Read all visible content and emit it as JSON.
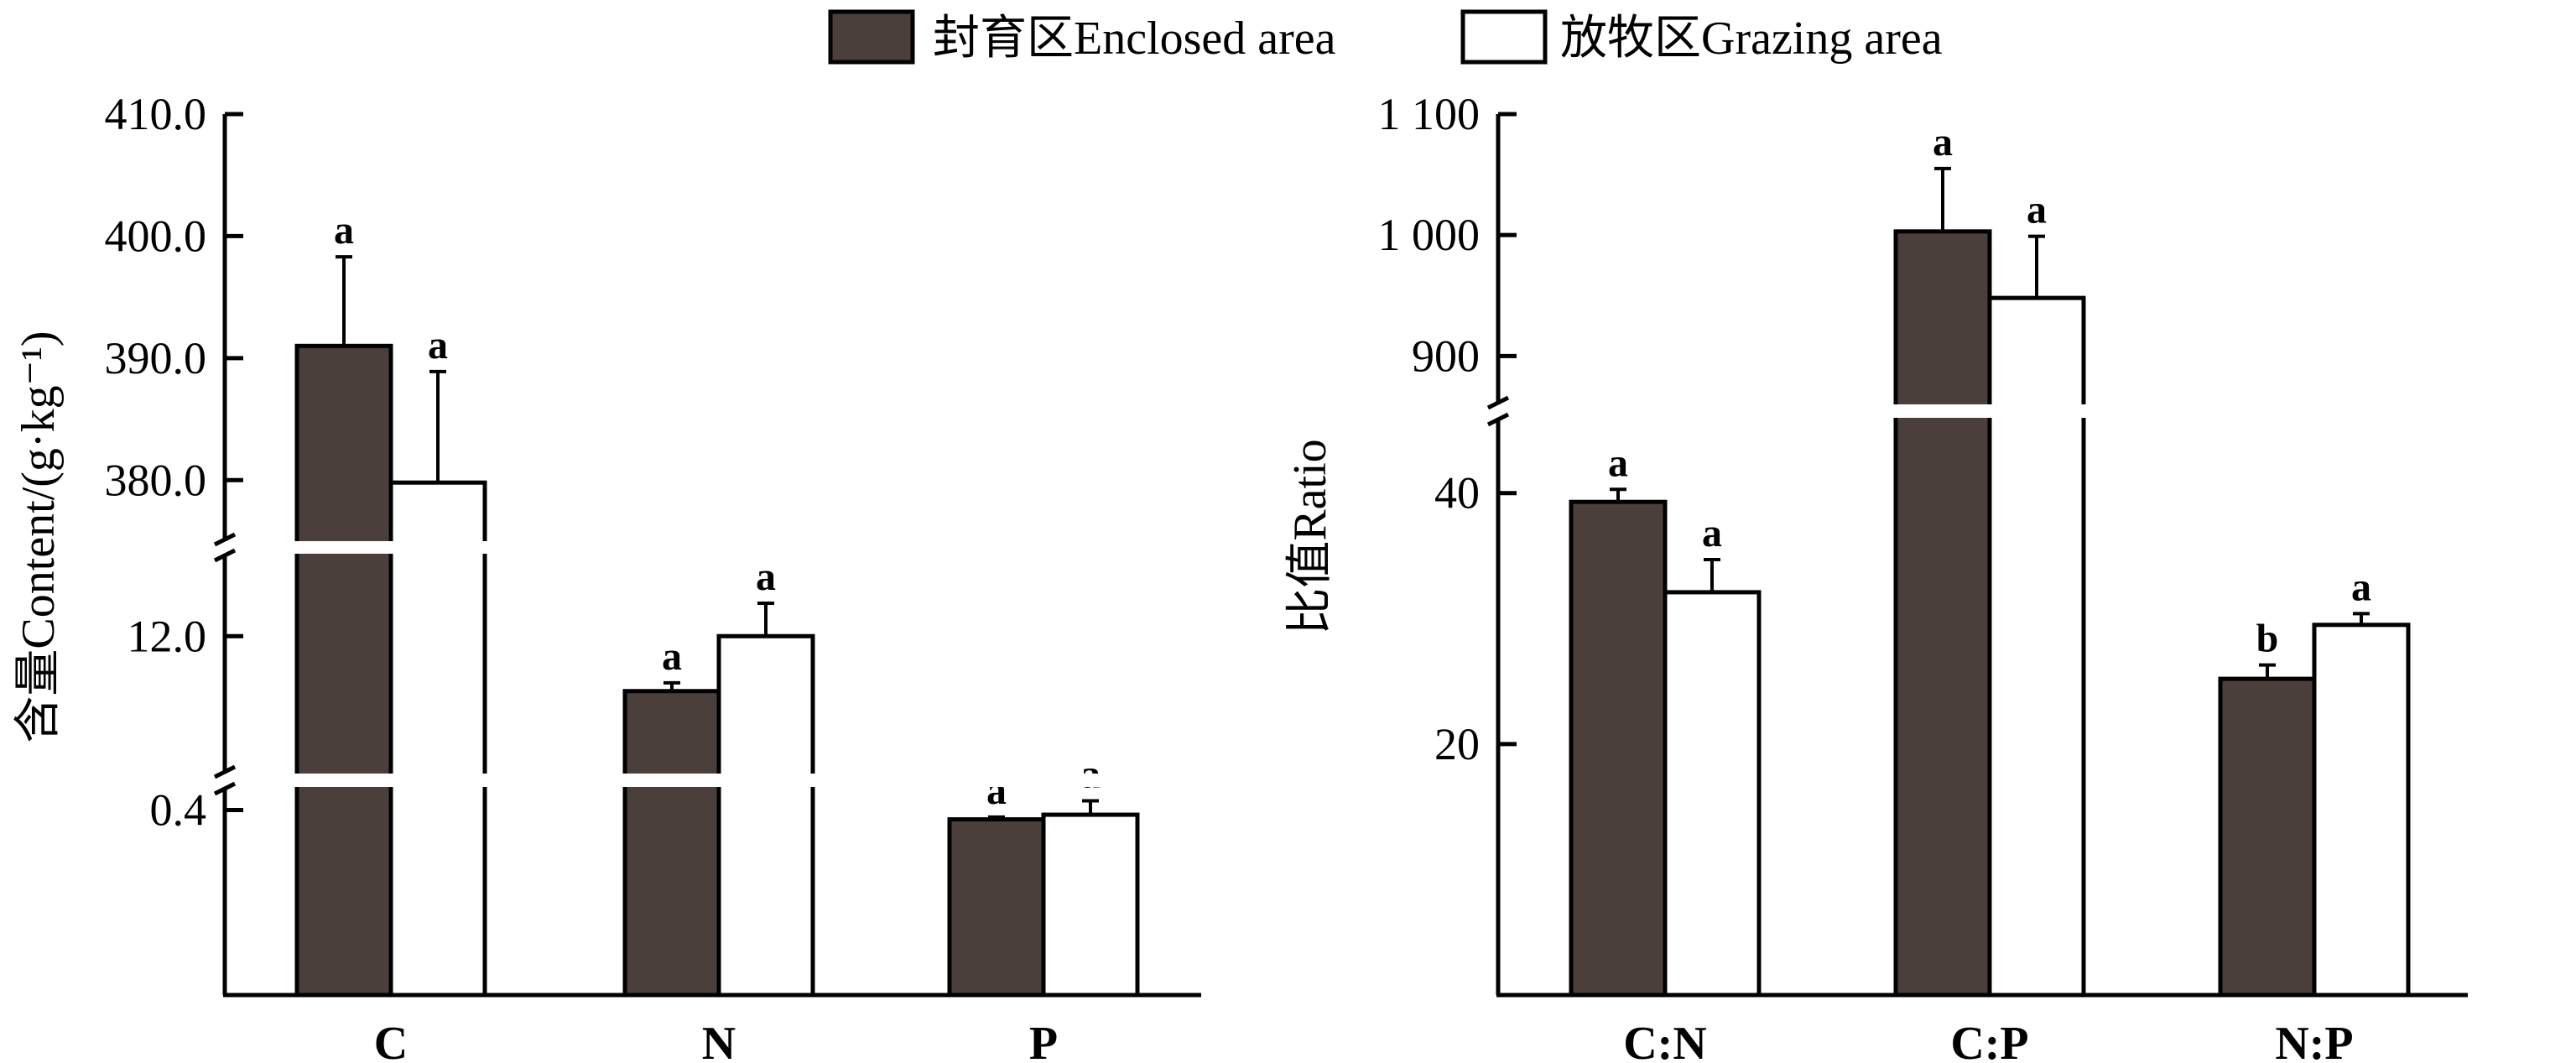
{
  "legend": [
    {
      "label": "封育区Enclosed area",
      "color": "#4a3f3b"
    },
    {
      "label": "放牧区Grazing area",
      "color": "#ffffff"
    }
  ],
  "chart_data": [
    {
      "type": "bar",
      "ylabel": "含量Content/(g·kg⁻¹)",
      "categories": [
        "C",
        "N",
        "P"
      ],
      "y_segments": [
        {
          "range": [
            0,
            0.45
          ],
          "ticks": [
            {
              "value": 0.4,
              "label": "0.4"
            }
          ]
        },
        {
          "range": [
            9.5,
            13.5
          ],
          "ticks": [
            {
              "value": 12.0,
              "label": "12.0"
            }
          ]
        },
        {
          "range": [
            375,
            410
          ],
          "ticks": [
            {
              "value": 380,
              "label": "380.0"
            },
            {
              "value": 390,
              "label": "390.0"
            },
            {
              "value": 400,
              "label": "400.0"
            },
            {
              "value": 410,
              "label": "410.0"
            }
          ]
        }
      ],
      "series": [
        {
          "name": "封育区Enclosed area",
          "values": [
            391.0,
            11.0,
            0.38
          ],
          "errors": [
            7.3,
            0.15,
            0.005
          ],
          "letters": [
            "a",
            "a",
            "a"
          ]
        },
        {
          "name": "放牧区Grazing area",
          "values": [
            379.8,
            12.0,
            0.39
          ],
          "errors": [
            9.1,
            0.6,
            0.03
          ],
          "letters": [
            "a",
            "a",
            "a"
          ]
        }
      ]
    },
    {
      "type": "bar",
      "ylabel": "比值Ratio",
      "categories": [
        "C:N",
        "C:P",
        "N:P"
      ],
      "y_segments": [
        {
          "range": [
            0,
            46
          ],
          "ticks": [
            {
              "value": 20,
              "label": "20"
            },
            {
              "value": 40,
              "label": "40"
            }
          ]
        },
        {
          "range": [
            860,
            1100
          ],
          "ticks": [
            {
              "value": 900,
              "label": "900"
            },
            {
              "value": 1000,
              "label": "1 000"
            },
            {
              "value": 1100,
              "label": "1 100"
            }
          ]
        }
      ],
      "series": [
        {
          "name": "封育区Enclosed area",
          "values": [
            39.3,
            1003,
            25.2
          ],
          "errors": [
            1.0,
            52,
            1.1
          ],
          "letters": [
            "a",
            "a",
            "b"
          ]
        },
        {
          "name": "放牧区Grazing area",
          "values": [
            32.1,
            948,
            29.5
          ],
          "errors": [
            2.6,
            51,
            0.9
          ],
          "letters": [
            "a",
            "a",
            "a"
          ]
        }
      ]
    }
  ]
}
